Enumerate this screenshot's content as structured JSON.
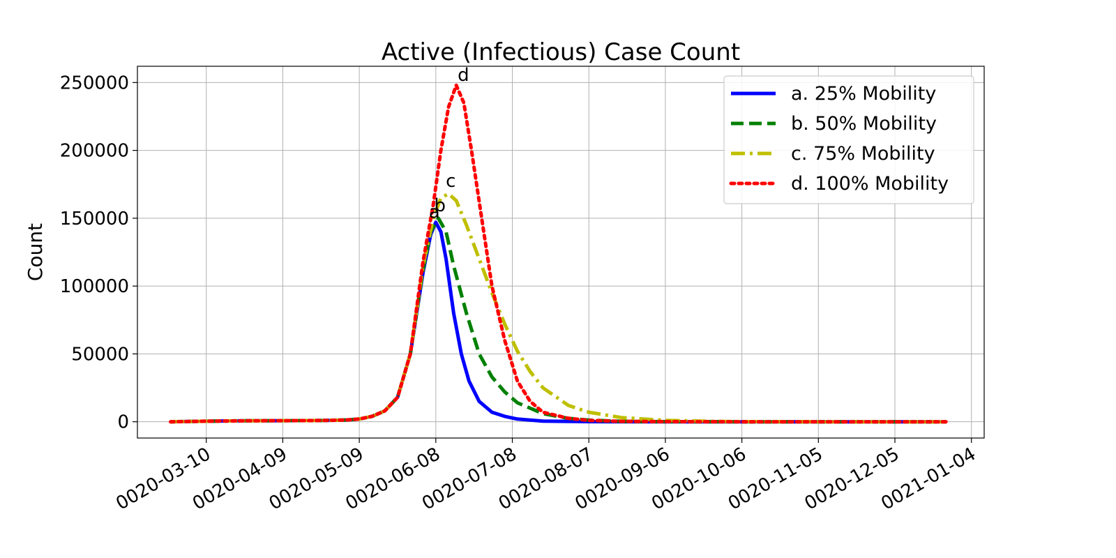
{
  "chart_data": {
    "type": "line",
    "title": "Active (Infectious) Case Count",
    "xlabel": "",
    "ylabel": "Count",
    "x_ticks": [
      "0020-03-10",
      "0020-04-09",
      "0020-05-09",
      "0020-06-08",
      "0020-07-08",
      "0020-08-07",
      "0020-09-06",
      "0020-10-06",
      "0020-11-05",
      "0020-12-05",
      "0021-01-04"
    ],
    "y_ticks": [
      0,
      50000,
      100000,
      150000,
      200000,
      250000
    ],
    "ylim": [
      -12000,
      262000
    ],
    "xlim": [
      "0020-02-12",
      "0021-01-09"
    ],
    "grid": true,
    "legend_position": "top-right",
    "series": [
      {
        "name": "a. 25% Mobility",
        "color": "#0000ff",
        "style": "solid",
        "annotation": "a",
        "points": [
          [
            "0020-02-25",
            0
          ],
          [
            "0020-03-10",
            400
          ],
          [
            "0020-03-25",
            700
          ],
          [
            "0020-04-09",
            800
          ],
          [
            "0020-04-24",
            900
          ],
          [
            "0020-05-04",
            1300
          ],
          [
            "0020-05-09",
            2000
          ],
          [
            "0020-05-14",
            4000
          ],
          [
            "0020-05-19",
            8000
          ],
          [
            "0020-05-24",
            18000
          ],
          [
            "0020-05-29",
            50000
          ],
          [
            "0020-06-03",
            110000
          ],
          [
            "0020-06-06",
            138000
          ],
          [
            "0020-06-08",
            147000
          ],
          [
            "0020-06-10",
            140000
          ],
          [
            "0020-06-12",
            120000
          ],
          [
            "0020-06-15",
            80000
          ],
          [
            "0020-06-18",
            50000
          ],
          [
            "0020-06-21",
            30000
          ],
          [
            "0020-06-25",
            15000
          ],
          [
            "0020-06-30",
            7000
          ],
          [
            "0020-07-05",
            4000
          ],
          [
            "0020-07-10",
            2000
          ],
          [
            "0020-07-20",
            500
          ],
          [
            "0020-08-07",
            100
          ],
          [
            "0020-09-06",
            0
          ],
          [
            "0020-10-06",
            0
          ],
          [
            "0020-11-05",
            0
          ],
          [
            "0020-12-05",
            0
          ],
          [
            "0020-12-25",
            0
          ]
        ]
      },
      {
        "name": "b. 50% Mobility",
        "color": "#008000",
        "style": "dashed",
        "annotation": "b",
        "points": [
          [
            "0020-02-25",
            0
          ],
          [
            "0020-03-10",
            400
          ],
          [
            "0020-03-25",
            700
          ],
          [
            "0020-04-09",
            800
          ],
          [
            "0020-04-24",
            900
          ],
          [
            "0020-05-04",
            1300
          ],
          [
            "0020-05-09",
            2000
          ],
          [
            "0020-05-14",
            4000
          ],
          [
            "0020-05-19",
            8000
          ],
          [
            "0020-05-24",
            18000
          ],
          [
            "0020-05-29",
            50000
          ],
          [
            "0020-06-03",
            112000
          ],
          [
            "0020-06-06",
            140000
          ],
          [
            "0020-06-09",
            150000
          ],
          [
            "0020-06-12",
            140000
          ],
          [
            "0020-06-15",
            115000
          ],
          [
            "0020-06-20",
            80000
          ],
          [
            "0020-06-25",
            50000
          ],
          [
            "0020-06-30",
            33000
          ],
          [
            "0020-07-05",
            22000
          ],
          [
            "0020-07-10",
            14000
          ],
          [
            "0020-07-20",
            6000
          ],
          [
            "0020-07-30",
            2500
          ],
          [
            "0020-08-07",
            1200
          ],
          [
            "0020-08-20",
            300
          ],
          [
            "0020-09-06",
            100
          ],
          [
            "0020-10-06",
            0
          ],
          [
            "0020-11-05",
            0
          ],
          [
            "0020-12-05",
            0
          ],
          [
            "0020-12-25",
            0
          ]
        ]
      },
      {
        "name": "c. 75% Mobility",
        "color": "#bfbf00",
        "style": "dashdot",
        "annotation": "c",
        "points": [
          [
            "0020-02-25",
            0
          ],
          [
            "0020-03-10",
            400
          ],
          [
            "0020-03-25",
            700
          ],
          [
            "0020-04-09",
            800
          ],
          [
            "0020-04-24",
            900
          ],
          [
            "0020-05-04",
            1300
          ],
          [
            "0020-05-09",
            2000
          ],
          [
            "0020-05-14",
            4000
          ],
          [
            "0020-05-19",
            8000
          ],
          [
            "0020-05-24",
            18000
          ],
          [
            "0020-05-29",
            50000
          ],
          [
            "0020-06-03",
            115000
          ],
          [
            "0020-06-07",
            150000
          ],
          [
            "0020-06-10",
            165000
          ],
          [
            "0020-06-13",
            168000
          ],
          [
            "0020-06-16",
            163000
          ],
          [
            "0020-06-20",
            145000
          ],
          [
            "0020-06-25",
            120000
          ],
          [
            "0020-06-30",
            95000
          ],
          [
            "0020-07-05",
            72000
          ],
          [
            "0020-07-10",
            52000
          ],
          [
            "0020-07-15",
            37000
          ],
          [
            "0020-07-20",
            25000
          ],
          [
            "0020-07-30",
            12000
          ],
          [
            "0020-08-07",
            7000
          ],
          [
            "0020-08-20",
            3000
          ],
          [
            "0020-09-06",
            1000
          ],
          [
            "0020-09-25",
            300
          ],
          [
            "0020-10-06",
            100
          ],
          [
            "0020-11-05",
            0
          ],
          [
            "0020-12-05",
            0
          ],
          [
            "0020-12-25",
            0
          ]
        ]
      },
      {
        "name": "d. 100% Mobility",
        "color": "#ff0000",
        "style": "dotted",
        "annotation": "d",
        "points": [
          [
            "0020-02-25",
            0
          ],
          [
            "0020-03-10",
            400
          ],
          [
            "0020-03-25",
            700
          ],
          [
            "0020-04-09",
            800
          ],
          [
            "0020-04-24",
            900
          ],
          [
            "0020-05-04",
            1300
          ],
          [
            "0020-05-09",
            2000
          ],
          [
            "0020-05-14",
            4000
          ],
          [
            "0020-05-19",
            8000
          ],
          [
            "0020-05-24",
            18000
          ],
          [
            "0020-05-29",
            50000
          ],
          [
            "0020-06-03",
            118000
          ],
          [
            "0020-06-07",
            160000
          ],
          [
            "0020-06-10",
            200000
          ],
          [
            "0020-06-13",
            232000
          ],
          [
            "0020-06-16",
            248000
          ],
          [
            "0020-06-19",
            235000
          ],
          [
            "0020-06-22",
            200000
          ],
          [
            "0020-06-26",
            150000
          ],
          [
            "0020-06-30",
            100000
          ],
          [
            "0020-07-05",
            60000
          ],
          [
            "0020-07-10",
            30000
          ],
          [
            "0020-07-15",
            15000
          ],
          [
            "0020-07-20",
            7000
          ],
          [
            "0020-07-30",
            2500
          ],
          [
            "0020-08-07",
            1000
          ],
          [
            "0020-08-20",
            300
          ],
          [
            "0020-09-06",
            100
          ],
          [
            "0020-10-06",
            0
          ],
          [
            "0020-11-05",
            0
          ],
          [
            "0020-12-05",
            0
          ],
          [
            "0020-12-25",
            0
          ]
        ]
      }
    ]
  }
}
